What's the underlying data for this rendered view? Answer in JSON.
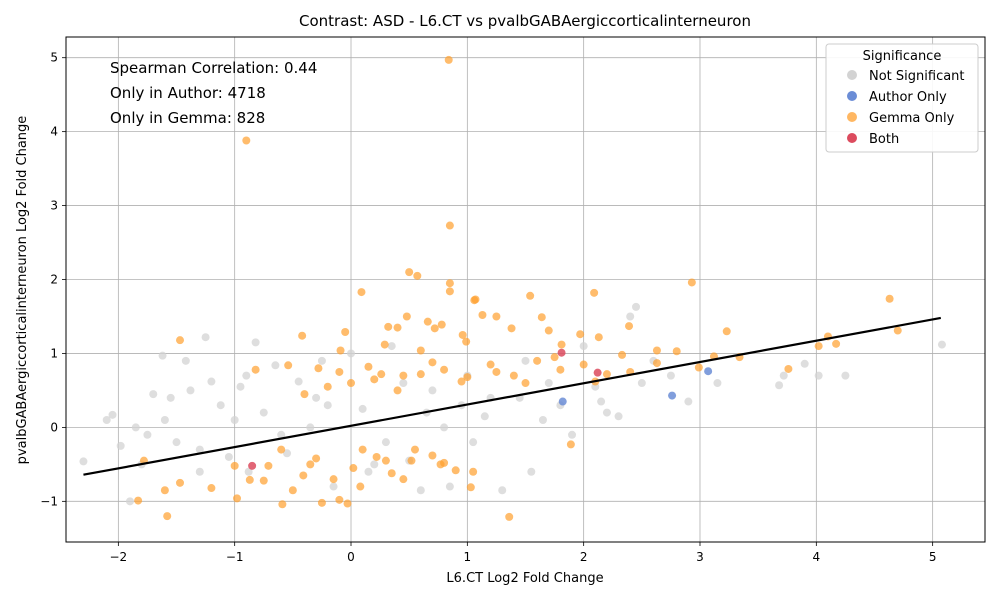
{
  "chart_data": {
    "type": "scatter",
    "title": "Contrast: ASD - L6.CT vs pvalbGABAergiccorticalinterneuron",
    "xlabel": "L6.CT Log2 Fold Change",
    "ylabel": "pvalbGABAergiccorticalinterneuron Log2 Fold Change",
    "xlim": [
      -2.45,
      5.45
    ],
    "ylim": [
      -1.55,
      5.28
    ],
    "x_ticks": [
      -2,
      -1,
      0,
      1,
      2,
      3,
      4,
      5
    ],
    "y_ticks": [
      -1,
      0,
      1,
      2,
      3,
      4,
      5
    ],
    "grid": true,
    "legend": {
      "title": "Significance",
      "position": "top-right",
      "entries": [
        "Not Significant",
        "Author Only",
        "Gemma Only",
        "Both"
      ]
    },
    "annotations": [
      "Spearman Correlation: 0.44",
      "Only in Author: 4718",
      "Only in Gemma: 828"
    ],
    "colors": {
      "Not Significant": "#d3d3d3",
      "Author Only": "#6b8dd6",
      "Gemma Only": "#ff9f2e",
      "Both": "#dc4b5e",
      "regression": "#000000"
    },
    "regression_line": {
      "x": [
        -2.3,
        5.07
      ],
      "y": [
        -0.64,
        1.48
      ]
    },
    "series": [
      {
        "name": "Not Significant",
        "points": [
          [
            -2.3,
            -0.46
          ],
          [
            -2.1,
            0.1
          ],
          [
            -2.05,
            0.17
          ],
          [
            -1.98,
            -0.25
          ],
          [
            -1.9,
            -1.0
          ],
          [
            -1.85,
            0.0
          ],
          [
            -1.75,
            -0.1
          ],
          [
            -1.7,
            0.45
          ],
          [
            -1.62,
            0.97
          ],
          [
            -1.55,
            0.4
          ],
          [
            -1.5,
            -0.2
          ],
          [
            -1.42,
            0.9
          ],
          [
            -1.38,
            0.5
          ],
          [
            -1.3,
            -0.3
          ],
          [
            -1.25,
            1.22
          ],
          [
            -1.2,
            0.62
          ],
          [
            -1.12,
            0.3
          ],
          [
            -1.05,
            -0.4
          ],
          [
            -0.95,
            0.55
          ],
          [
            -0.88,
            -0.6
          ],
          [
            -0.82,
            1.15
          ],
          [
            -0.75,
            0.2
          ],
          [
            -0.65,
            0.84
          ],
          [
            -0.55,
            -0.35
          ],
          [
            -0.45,
            0.62
          ],
          [
            -0.35,
            0.0
          ],
          [
            -0.25,
            0.9
          ],
          [
            -0.15,
            -0.8
          ],
          [
            0.0,
            1.0
          ],
          [
            0.1,
            0.25
          ],
          [
            0.2,
            -0.5
          ],
          [
            0.35,
            1.1
          ],
          [
            0.45,
            0.6
          ],
          [
            0.6,
            -0.85
          ],
          [
            0.7,
            0.5
          ],
          [
            0.85,
            -0.8
          ],
          [
            0.95,
            0.3
          ],
          [
            1.05,
            -0.2
          ],
          [
            1.15,
            0.15
          ],
          [
            1.3,
            -0.85
          ],
          [
            1.45,
            0.4
          ],
          [
            1.55,
            -0.6
          ],
          [
            1.65,
            0.1
          ],
          [
            1.8,
            0.3
          ],
          [
            1.9,
            -0.1
          ],
          [
            2.0,
            1.1
          ],
          [
            2.1,
            0.55
          ],
          [
            2.2,
            0.2
          ],
          [
            2.3,
            0.15
          ],
          [
            2.4,
            1.5
          ],
          [
            2.45,
            1.63
          ],
          [
            2.6,
            0.9
          ],
          [
            2.75,
            0.7
          ],
          [
            2.9,
            0.35
          ],
          [
            3.15,
            0.6
          ],
          [
            3.68,
            0.57
          ],
          [
            3.72,
            0.7
          ],
          [
            3.9,
            0.86
          ],
          [
            4.02,
            0.7
          ],
          [
            4.25,
            0.7
          ],
          [
            5.08,
            1.12
          ],
          [
            -1.0,
            0.1
          ],
          [
            -0.6,
            -0.1
          ],
          [
            -0.2,
            0.3
          ],
          [
            0.3,
            -0.2
          ],
          [
            0.8,
            0.0
          ],
          [
            1.2,
            0.4
          ],
          [
            1.7,
            0.6
          ],
          [
            2.5,
            0.6
          ],
          [
            -1.8,
            -0.5
          ],
          [
            -1.3,
            -0.6
          ],
          [
            -0.9,
            0.7
          ],
          [
            0.5,
            -0.45
          ],
          [
            1.0,
            0.7
          ],
          [
            1.5,
            0.9
          ],
          [
            2.15,
            0.35
          ],
          [
            -1.6,
            0.1
          ],
          [
            -0.3,
            0.4
          ],
          [
            0.15,
            -0.6
          ],
          [
            0.65,
            0.2
          ]
        ]
      },
      {
        "name": "Author Only",
        "points": [
          [
            3.07,
            0.76
          ],
          [
            2.76,
            0.43
          ],
          [
            1.82,
            0.35
          ]
        ]
      },
      {
        "name": "Gemma Only",
        "points": [
          [
            0.84,
            4.97
          ],
          [
            -0.9,
            3.88
          ],
          [
            0.85,
            2.73
          ],
          [
            0.5,
            2.1
          ],
          [
            0.57,
            2.05
          ],
          [
            0.85,
            1.95
          ],
          [
            0.85,
            1.84
          ],
          [
            0.09,
            1.83
          ],
          [
            2.09,
            1.82
          ],
          [
            1.54,
            1.78
          ],
          [
            1.07,
            1.73
          ],
          [
            1.06,
            1.72
          ],
          [
            4.63,
            1.74
          ],
          [
            2.93,
            1.96
          ],
          [
            1.13,
            1.52
          ],
          [
            1.25,
            1.5
          ],
          [
            1.64,
            1.49
          ],
          [
            0.48,
            1.5
          ],
          [
            0.66,
            1.43
          ],
          [
            0.78,
            1.39
          ],
          [
            0.72,
            1.34
          ],
          [
            0.32,
            1.36
          ],
          [
            0.4,
            1.35
          ],
          [
            -0.42,
            1.24
          ],
          [
            -0.05,
            1.29
          ],
          [
            0.96,
            1.25
          ],
          [
            2.39,
            1.37
          ],
          [
            3.23,
            1.3
          ],
          [
            4.7,
            1.31
          ],
          [
            4.1,
            1.23
          ],
          [
            2.13,
            1.22
          ],
          [
            -1.47,
            1.18
          ],
          [
            -0.09,
            1.04
          ],
          [
            0.6,
            1.04
          ],
          [
            1.38,
            1.34
          ],
          [
            1.7,
            1.31
          ],
          [
            1.97,
            1.26
          ],
          [
            0.29,
            1.12
          ],
          [
            0.99,
            1.16
          ],
          [
            1.81,
            1.12
          ],
          [
            4.02,
            1.1
          ],
          [
            4.17,
            1.13
          ],
          [
            2.63,
            1.04
          ],
          [
            2.8,
            1.03
          ],
          [
            3.12,
            0.96
          ],
          [
            3.34,
            0.95
          ],
          [
            2.99,
            0.81
          ],
          [
            3.76,
            0.79
          ],
          [
            2.33,
            0.98
          ],
          [
            2.63,
            0.87
          ],
          [
            -0.82,
            0.78
          ],
          [
            -0.54,
            0.84
          ],
          [
            -0.28,
            0.8
          ],
          [
            0.26,
            0.72
          ],
          [
            -1.78,
            -0.45
          ],
          [
            -1.47,
            -0.75
          ],
          [
            -1.6,
            -0.85
          ],
          [
            -1.58,
            -1.2
          ],
          [
            -1.83,
            -0.99
          ],
          [
            -1.2,
            -0.82
          ],
          [
            -0.98,
            -0.96
          ],
          [
            -0.87,
            -0.71
          ],
          [
            -0.59,
            -1.04
          ],
          [
            -0.25,
            -1.02
          ],
          [
            -0.1,
            -0.98
          ],
          [
            -0.03,
            -1.03
          ],
          [
            0.08,
            -0.8
          ],
          [
            1.36,
            -1.21
          ],
          [
            1.03,
            -0.81
          ],
          [
            1.05,
            -0.6
          ],
          [
            0.77,
            -0.5
          ],
          [
            1.89,
            -0.23
          ],
          [
            -0.71,
            -0.52
          ],
          [
            -0.41,
            -0.65
          ],
          [
            -0.3,
            -0.42
          ],
          [
            -0.15,
            -0.7
          ],
          [
            0.02,
            -0.55
          ],
          [
            0.22,
            -0.4
          ],
          [
            0.35,
            -0.62
          ],
          [
            0.52,
            -0.45
          ],
          [
            0.7,
            -0.38
          ],
          [
            0.9,
            -0.58
          ],
          [
            -0.4,
            0.45
          ],
          [
            -0.2,
            0.55
          ],
          [
            0.0,
            0.6
          ],
          [
            0.2,
            0.65
          ],
          [
            0.4,
            0.5
          ],
          [
            0.6,
            0.72
          ],
          [
            0.8,
            0.78
          ],
          [
            1.0,
            0.68
          ],
          [
            1.2,
            0.85
          ],
          [
            1.4,
            0.7
          ],
          [
            1.6,
            0.9
          ],
          [
            1.8,
            0.78
          ],
          [
            2.0,
            0.85
          ],
          [
            2.2,
            0.72
          ],
          [
            -0.1,
            0.75
          ],
          [
            0.15,
            0.82
          ],
          [
            0.45,
            0.7
          ],
          [
            0.7,
            0.88
          ],
          [
            0.95,
            0.62
          ],
          [
            1.25,
            0.75
          ],
          [
            1.5,
            0.6
          ],
          [
            1.75,
            0.95
          ],
          [
            2.1,
            0.62
          ],
          [
            2.4,
            0.75
          ],
          [
            -0.6,
            -0.3
          ],
          [
            -0.35,
            -0.5
          ],
          [
            0.1,
            -0.3
          ],
          [
            0.3,
            -0.45
          ],
          [
            0.55,
            -0.3
          ],
          [
            0.8,
            -0.48
          ],
          [
            -1.0,
            -0.52
          ],
          [
            -0.75,
            -0.72
          ],
          [
            -0.5,
            -0.85
          ],
          [
            0.45,
            -0.7
          ]
        ]
      },
      {
        "name": "Both",
        "points": [
          [
            1.81,
            1.01
          ],
          [
            2.12,
            0.74
          ],
          [
            -0.85,
            -0.52
          ]
        ]
      }
    ]
  }
}
